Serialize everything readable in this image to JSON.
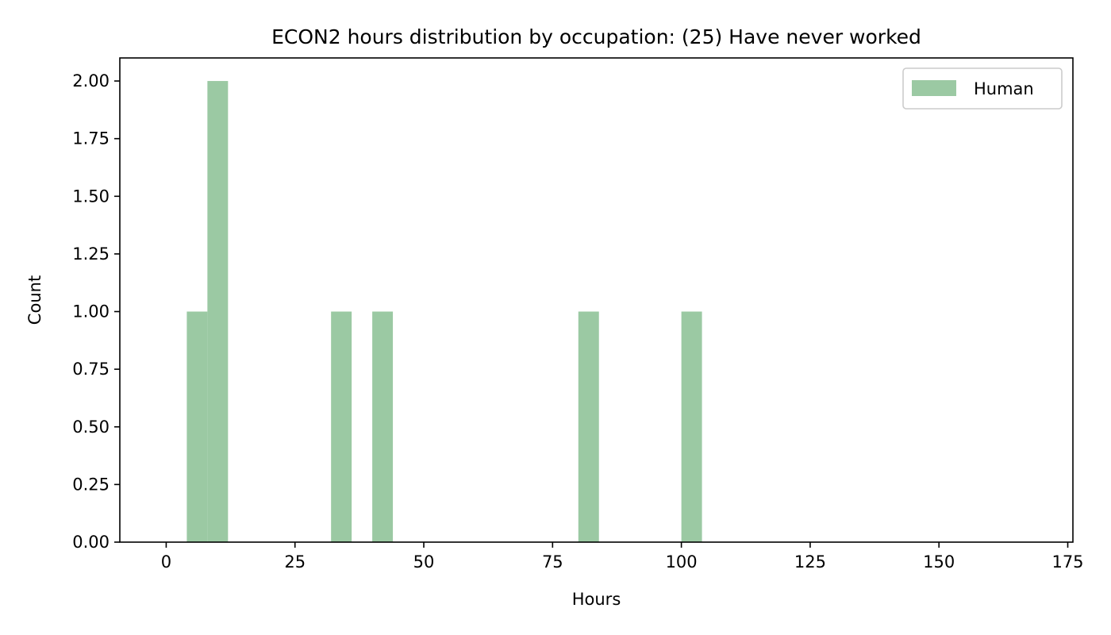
{
  "chart_data": {
    "type": "bar",
    "title": "ECON2 hours distribution by occupation: (25) Have never worked",
    "xlabel": "Hours",
    "ylabel": "Count",
    "xlim": [
      -9,
      176
    ],
    "ylim": [
      0,
      2.1
    ],
    "xticks": [
      0,
      25,
      50,
      75,
      100,
      125,
      150,
      175
    ],
    "xtick_labels": [
      "0",
      "25",
      "50",
      "75",
      "100",
      "125",
      "150",
      "175"
    ],
    "yticks": [
      0,
      0.25,
      0.5,
      0.75,
      1.0,
      1.25,
      1.5,
      1.75,
      2.0
    ],
    "ytick_labels": [
      "0.00",
      "0.25",
      "0.50",
      "0.75",
      "1.00",
      "1.25",
      "1.50",
      "1.75",
      "2.00"
    ],
    "grid": false,
    "legend_position": "top-right",
    "series": [
      {
        "name": "Human",
        "color": "#9bc9a3",
        "bins": [
          {
            "x0": 4,
            "x1": 8,
            "value": 1
          },
          {
            "x0": 8,
            "x1": 12,
            "value": 2
          },
          {
            "x0": 32,
            "x1": 36,
            "value": 1
          },
          {
            "x0": 40,
            "x1": 44,
            "value": 1
          },
          {
            "x0": 80,
            "x1": 84,
            "value": 1
          },
          {
            "x0": 100,
            "x1": 104,
            "value": 1
          }
        ]
      }
    ]
  }
}
